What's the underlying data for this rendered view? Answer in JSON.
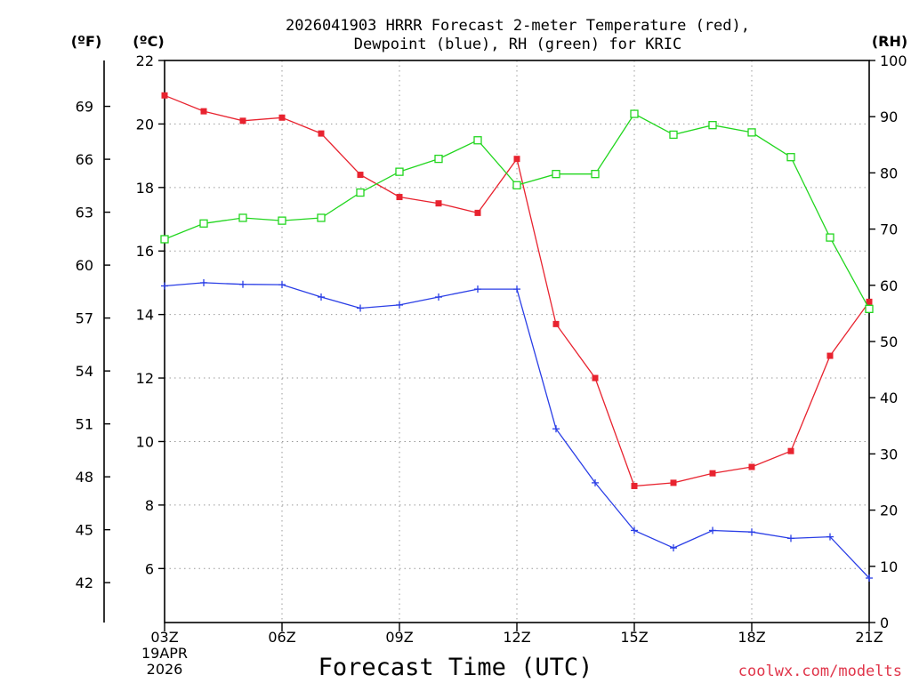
{
  "title": {
    "line1": "2026041903 HRRR Forecast 2-meter Temperature (red),",
    "line2": "Dewpoint (blue), RH (green) for KRIC"
  },
  "units": {
    "fahrenheit": "(ºF)",
    "celsius": "(ºC)",
    "rh": "(RH)"
  },
  "credit": "coolwx.com/modelts",
  "colors": {
    "temperature": "#e8232f",
    "dewpoint": "#2a3ee6",
    "rh": "#22d61f",
    "credit": "#e0354a"
  },
  "chart_data": {
    "type": "line",
    "title": "2026041903 HRRR Forecast 2-meter Temperature (red), Dewpoint (blue), RH (green) for KRIC",
    "xlabel": "Forecast Time (UTC)",
    "date_label": [
      "19APR",
      "2026"
    ],
    "x": [
      3,
      4,
      5,
      6,
      7,
      8,
      9,
      10,
      11,
      12,
      13,
      14,
      15,
      16,
      17,
      18,
      19,
      20,
      21
    ],
    "xlim": [
      3,
      21
    ],
    "x_ticks": [
      3,
      6,
      9,
      12,
      15,
      18,
      21
    ],
    "x_tick_labels": [
      "03Z",
      "06Z",
      "09Z",
      "12Z",
      "15Z",
      "18Z",
      "21Z"
    ],
    "y_celsius": {
      "label": "(ºC)",
      "range": [
        4.3,
        22
      ],
      "ticks": [
        6,
        8,
        10,
        12,
        14,
        16,
        18,
        20,
        22
      ]
    },
    "y_fahrenheit": {
      "label": "(ºF)",
      "ticks": [
        42,
        45,
        48,
        51,
        54,
        57,
        60,
        63,
        66,
        69
      ]
    },
    "y_rh": {
      "label": "(RH)",
      "range": [
        0,
        100
      ],
      "ticks": [
        0,
        10,
        20,
        30,
        40,
        50,
        60,
        70,
        80,
        90,
        100
      ]
    },
    "grid": true,
    "series": [
      {
        "name": "Temperature",
        "axis": "celsius",
        "marker": "filled-square",
        "values": [
          20.9,
          20.4,
          20.1,
          20.2,
          19.7,
          18.4,
          17.7,
          17.5,
          17.2,
          18.9,
          13.7,
          12.0,
          8.6,
          8.7,
          9.0,
          9.2,
          9.7,
          12.7,
          14.4
        ]
      },
      {
        "name": "Dewpoint",
        "axis": "celsius",
        "marker": "plus",
        "values": [
          14.9,
          15.0,
          14.95,
          14.94,
          14.55,
          14.2,
          14.3,
          14.55,
          14.8,
          14.8,
          10.4,
          8.7,
          7.2,
          6.65,
          7.2,
          7.15,
          6.95,
          7.0,
          5.7
        ]
      },
      {
        "name": "RH",
        "axis": "rh",
        "marker": "open-square",
        "values": [
          68.2,
          71.0,
          72.0,
          71.5,
          72.0,
          76.5,
          80.2,
          82.5,
          85.8,
          77.8,
          79.8,
          79.8,
          90.5,
          86.8,
          88.5,
          87.2,
          82.8,
          68.5,
          55.8
        ]
      }
    ]
  }
}
